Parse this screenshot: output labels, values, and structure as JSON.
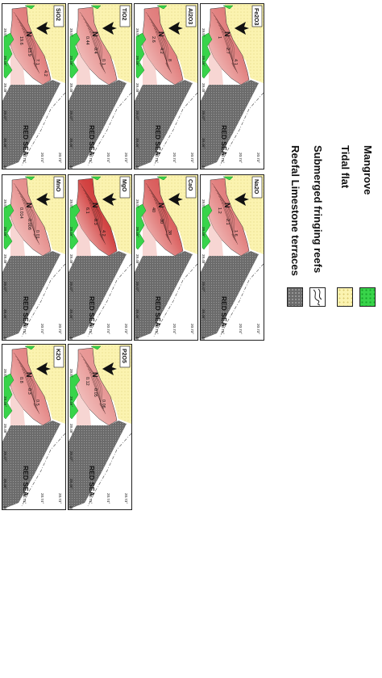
{
  "map": {
    "sea_label": "RED SEA",
    "north_label": "N",
    "lon_ticks": [
      "20.73°",
      "20.74°",
      "20.75°"
    ],
    "lat_ticks": [
      "39.45°",
      "39.46°",
      "39.47°",
      "39.48°",
      "39.49°",
      "39.5°"
    ],
    "colors": {
      "reef_terrace": "#6b6b6b",
      "tidal_flat": "#fbf3b0",
      "mangrove": "#38d44a",
      "low_concentration": "#f7d6d3",
      "high_concentration": "#c81818"
    }
  },
  "panels": [
    {
      "id": "sio2",
      "title": "SiO2",
      "values": [
        "19.6",
        "13.9",
        "7.1",
        "4.2"
      ],
      "intensity": 0.55
    },
    {
      "id": "tio2",
      "title": "TiO2",
      "values": [
        "0.44",
        "0.4",
        "0.1"
      ],
      "intensity": 0.45
    },
    {
      "id": "al2o3",
      "title": "Al2O3",
      "values": [
        "2.6",
        "4.2",
        "8"
      ],
      "intensity": 0.55
    },
    {
      "id": "fe2o3",
      "title": "Fe2O3",
      "values": [
        "1",
        "2.7",
        "4.1"
      ],
      "intensity": 0.55
    },
    {
      "id": "mno",
      "title": "MnO",
      "values": [
        "0.014",
        "0.008",
        "0.01"
      ],
      "intensity": 0.45
    },
    {
      "id": "mgo",
      "title": "MgO",
      "values": [
        "6.1",
        "8.3",
        "4.2"
      ],
      "intensity": 0.95
    },
    {
      "id": "cao",
      "title": "CaO",
      "values": [
        "40",
        "30",
        "38"
      ],
      "intensity": 0.75
    },
    {
      "id": "na2o",
      "title": "Na2O",
      "values": [
        "1.2",
        "2.1",
        "1.6"
      ],
      "intensity": 0.55
    },
    {
      "id": "k2o",
      "title": "K2O",
      "values": [
        "0.8",
        "0.3",
        "0.5"
      ],
      "intensity": 0.5
    },
    {
      "id": "p2o5",
      "title": "P2O5",
      "values": [
        "0.12",
        "0.05",
        "0.06"
      ],
      "intensity": 0.4
    }
  ],
  "legend": {
    "items": [
      {
        "label": "Reefal Limestone terraces"
      },
      {
        "label": "Submerged fringing reefs"
      },
      {
        "label": "Tidal flat"
      },
      {
        "label": "Mangrove"
      }
    ]
  }
}
